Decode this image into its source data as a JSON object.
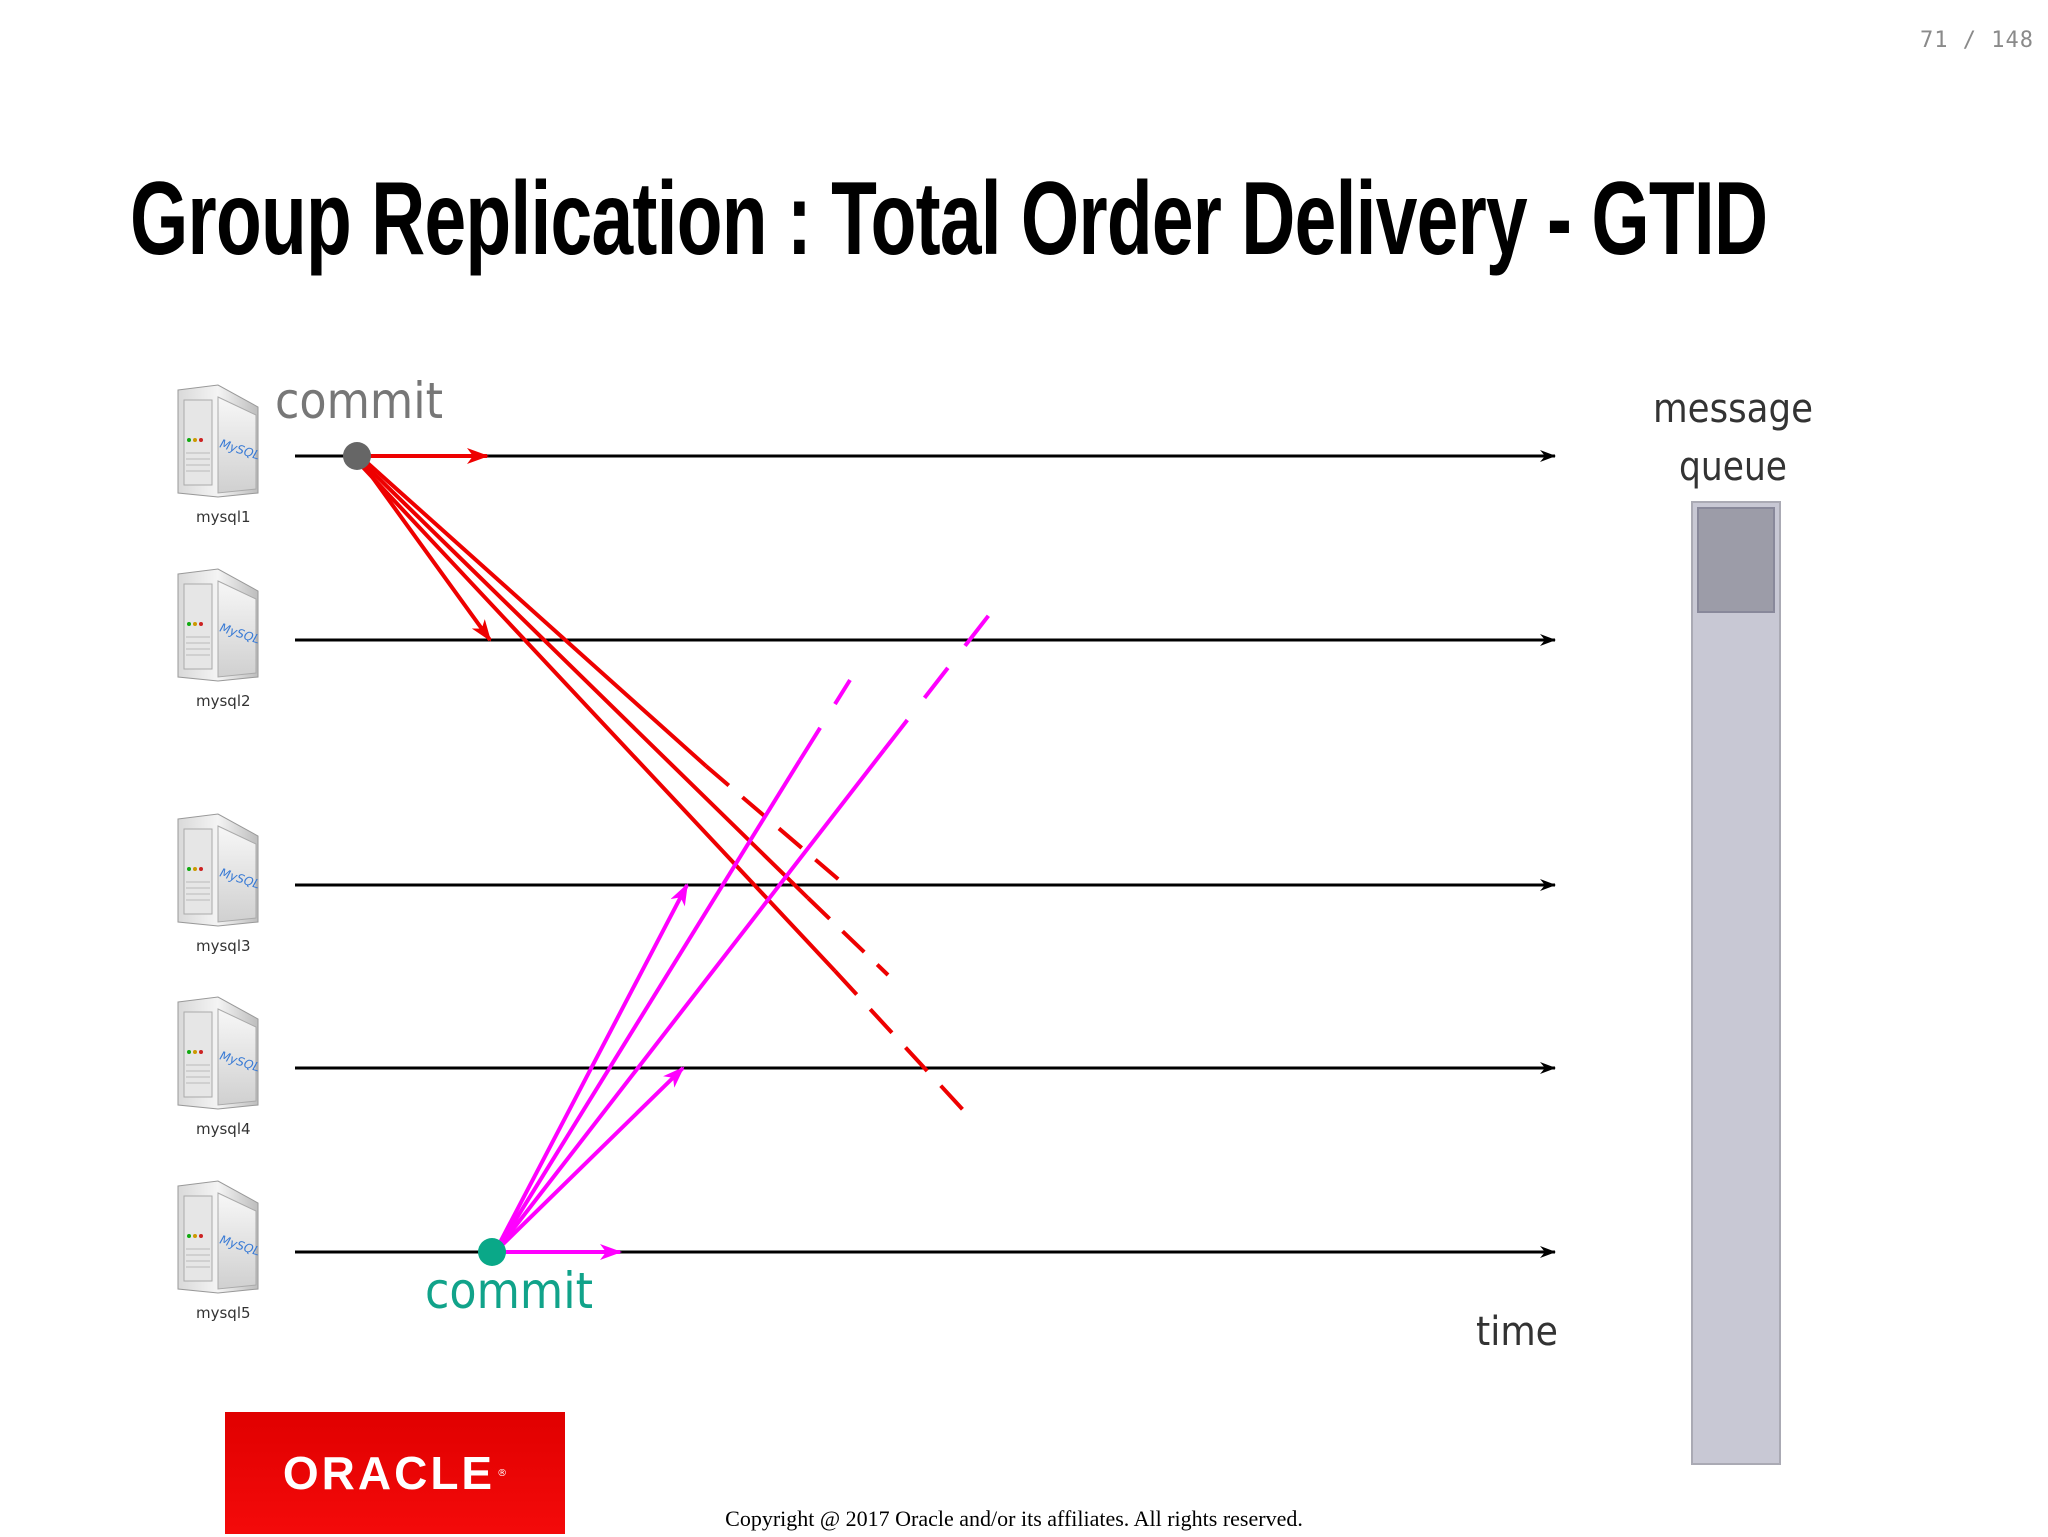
{
  "page_counter": "71 / 148",
  "title": "Group Replication : Total Order Delivery - GTID",
  "servers": [
    {
      "caption": "mysql1",
      "badge": "MySQL"
    },
    {
      "caption": "mysql2",
      "badge": "MySQL"
    },
    {
      "caption": "mysql3",
      "badge": "MySQL"
    },
    {
      "caption": "mysql4",
      "badge": "MySQL"
    },
    {
      "caption": "mysql5",
      "badge": "MySQL"
    }
  ],
  "labels": {
    "commit_top": "commit",
    "commit_bottom": "commit",
    "time": "time",
    "queue_line1": "message",
    "queue_line2": "queue"
  },
  "colors": {
    "timeline": "#000000",
    "origin_commit_node": "#666666",
    "origin_messages": "#ee0000",
    "second_commit_node": "#0aa888",
    "second_messages": "#ff00ff",
    "commit_bottom_text": "#11a38a",
    "queue_fill": "#c8c8d4",
    "queue_item": "#9c9ca8",
    "oracle_red": "#ee0000"
  },
  "logo": {
    "text": "ORACLE",
    "mark": "®"
  },
  "copyright": "Copyright @ 2017 Oracle and/or its affiliates. All rights reserved."
}
